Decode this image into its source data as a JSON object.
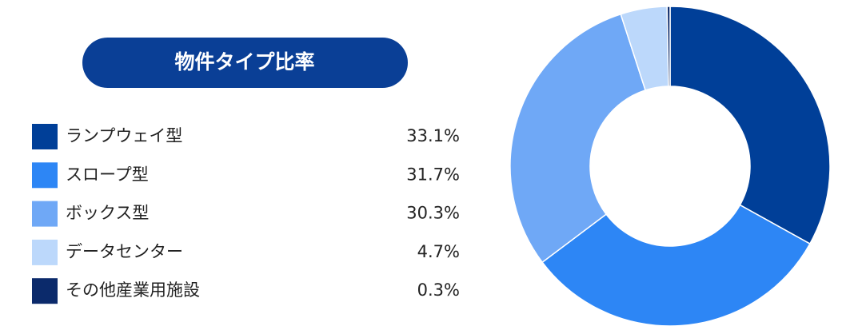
{
  "chart_data": {
    "type": "pie",
    "title": "物件タイプ比率",
    "categories": [
      "ランプウェイ型",
      "スロープ型",
      "ボックス型",
      "データセンター",
      "その他産業用施設"
    ],
    "values": [
      33.1,
      31.7,
      30.3,
      4.7,
      0.3
    ],
    "value_labels": [
      "33.1%",
      "31.7%",
      "30.3%",
      "4.7%",
      "0.3%"
    ],
    "colors": [
      "#003f98",
      "#2d86f5",
      "#6fa8f6",
      "#bcd8fb",
      "#0b2a6b"
    ]
  }
}
